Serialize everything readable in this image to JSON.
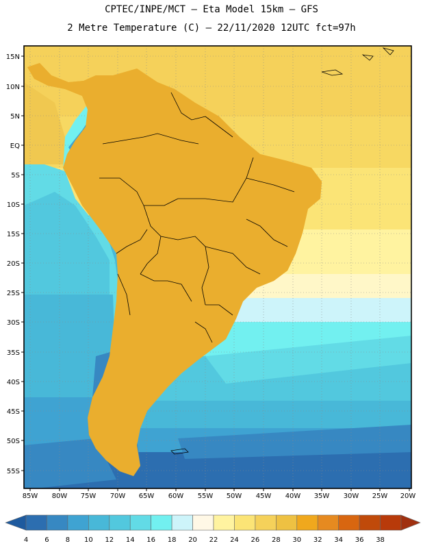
{
  "title": {
    "line1": "CPTEC/INPE/MCT –  Eta Model 15km – GFS",
    "line2": "2 Metre Temperature (C) – 22/11/2020 12UTC fct=97h"
  },
  "map": {
    "lat_labels": [
      "15N",
      "10N",
      "5N",
      "EQ",
      "5S",
      "10S",
      "15S",
      "20S",
      "25S",
      "30S",
      "35S",
      "40S",
      "45S",
      "50S",
      "55S"
    ],
    "lon_labels": [
      "85W",
      "80W",
      "75W",
      "70W",
      "65W",
      "60W",
      "55W",
      "50W",
      "45W",
      "40W",
      "35W",
      "30W",
      "25W",
      "20W"
    ]
  },
  "legend": {
    "values": [
      "4",
      "6",
      "8",
      "10",
      "12",
      "14",
      "16",
      "18",
      "20",
      "22",
      "24",
      "26",
      "28",
      "30",
      "32",
      "34",
      "36",
      "38"
    ],
    "colors": [
      "#1e5a9e",
      "#2c6eb0",
      "#3788c2",
      "#3fa3d2",
      "#48b8d8",
      "#52c8de",
      "#62dbe6",
      "#72f0f0",
      "#cdf4fa",
      "#fff8e6",
      "#fff3a0",
      "#fbe476",
      "#f5d15a",
      "#eec142",
      "#f0a81d",
      "#e68a20",
      "#d86610",
      "#c04a0a",
      "#b83a0a",
      "#a03010"
    ]
  }
}
